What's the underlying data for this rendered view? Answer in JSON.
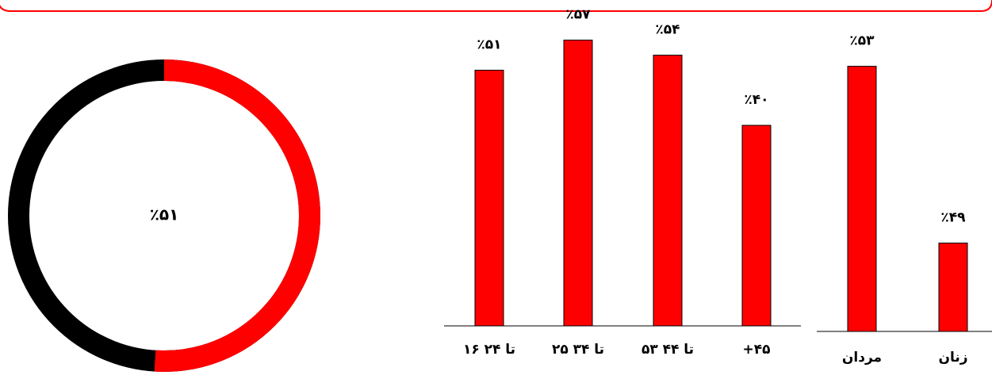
{
  "chart_data": [
    {
      "type": "donut",
      "values": [
        51
      ],
      "value_labels": [
        "٪۵۱"
      ],
      "color": "#ff0000",
      "track_color": "#000000",
      "ylim": [
        0,
        100
      ]
    },
    {
      "type": "bar",
      "categories": [
        "۱۶ تا ۲۴",
        "۲۵ تا ۳۴",
        "۵۳ تا ۴۴",
        "+۴۵"
      ],
      "values": [
        51,
        57,
        54,
        40
      ],
      "value_labels": [
        "٪۵۱",
        "٪۵۷",
        "٪۵۴",
        "٪۴۰"
      ],
      "color": "#ff0000",
      "ylim": [
        0,
        65
      ]
    },
    {
      "type": "bar",
      "categories": [
        "مردان",
        "زنان"
      ],
      "values": [
        53,
        49
      ],
      "value_labels": [
        "٪۵۳",
        "٪۴۹"
      ],
      "color": "#ff0000",
      "ylim": [
        47,
        54.5
      ]
    }
  ]
}
